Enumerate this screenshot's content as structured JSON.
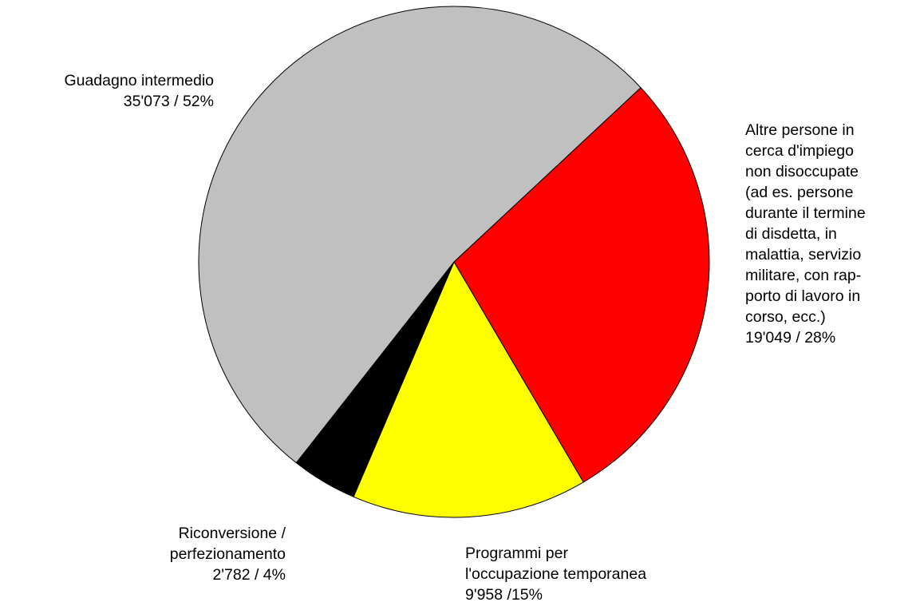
{
  "chart_data": {
    "type": "pie",
    "categories": [
      "Altre persone in\ncerca d'impiego\nnon disoccupate\n(ad es. persone\ndurante il termine\ndi disdetta, in\nmalattia, servizio\nmilitare, con rap-\nporto di lavoro in\ncorso, ecc.)",
      "Programmi per\nl'occupazione temporanea",
      "Riconversione /\nperfezionamento",
      "Guadagno intermedio"
    ],
    "values": [
      19049,
      9958,
      2782,
      35073
    ],
    "value_labels": [
      "19'049 / 28%",
      "9'958 /15%",
      "2'782 / 4%",
      "35'073 / 52%"
    ],
    "colors": [
      "#ff0000",
      "#ffff00",
      "#000000",
      "#c0c0c0"
    ]
  }
}
